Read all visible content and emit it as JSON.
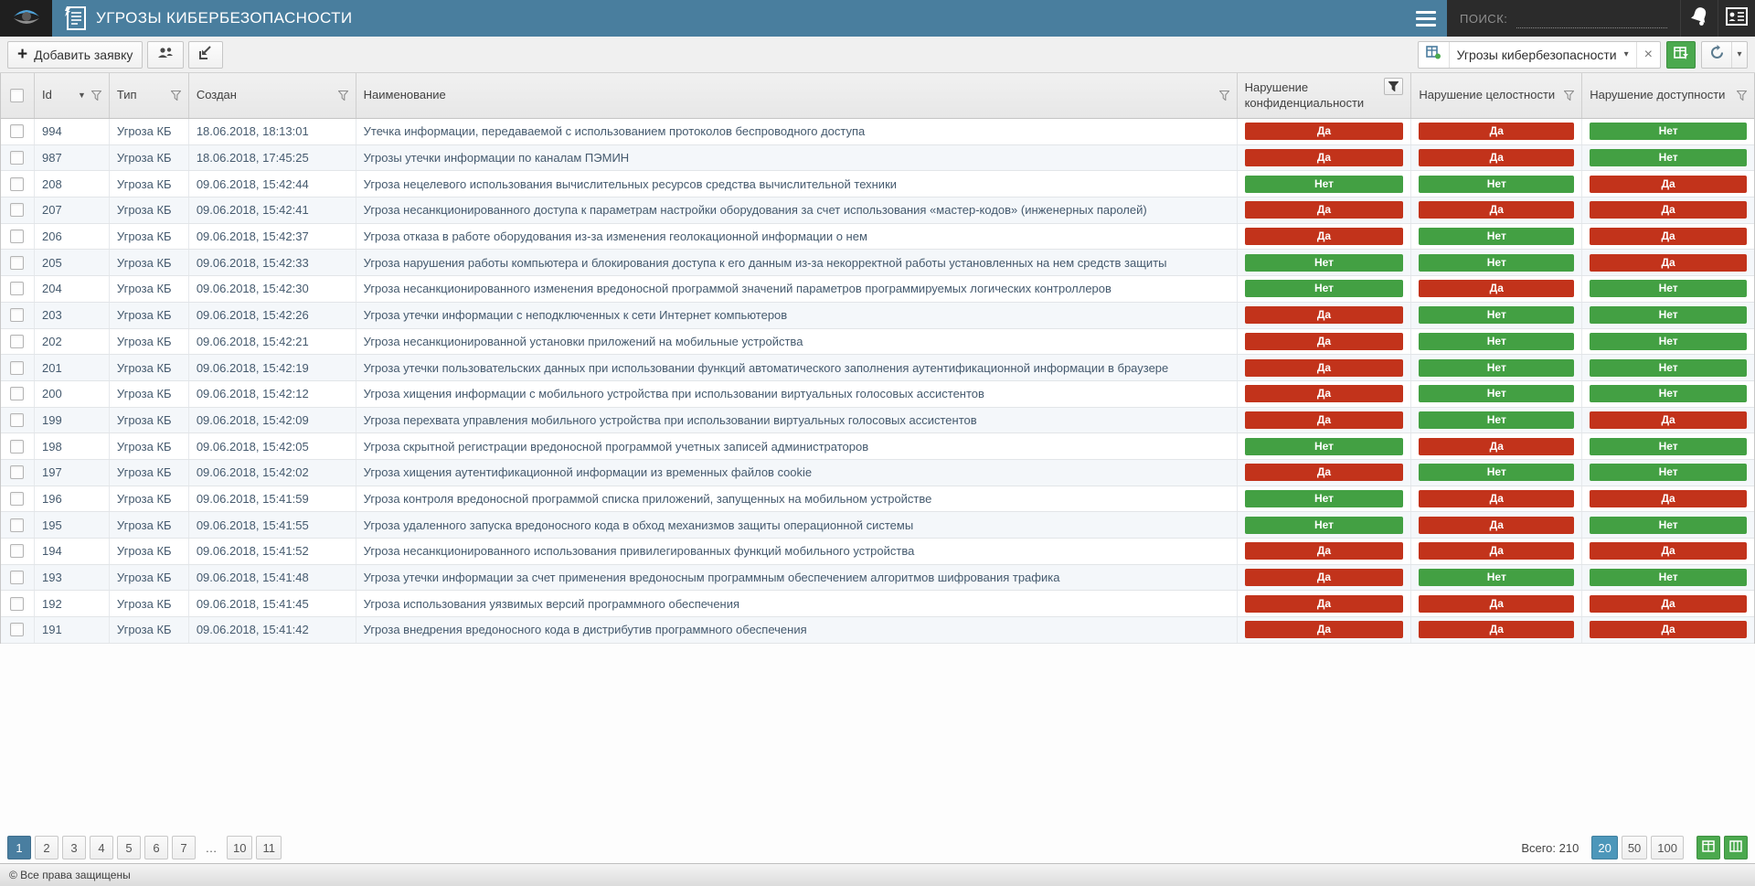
{
  "titlebar": {
    "title": "УГРОЗЫ КИБЕРБЕЗОПАСНОСТИ",
    "search_label": "ПОИСК:"
  },
  "icons": {
    "plus": "+",
    "caret": "▾",
    "close": "×",
    "sort_desc": "▼"
  },
  "colors": {
    "titlebar": "#497E9E",
    "badge_yes": "#C2331B",
    "badge_no": "#43A043",
    "green_button": "#4BA94E",
    "active_page": "#497EA0",
    "active_size": "#4D97BA"
  },
  "toolbar": {
    "add_label": "Добавить заявку",
    "view_name": "Угрозы кибербезопасности"
  },
  "table": {
    "badge_yes_text": "Да",
    "badge_no_text": "Нет",
    "columns": [
      {
        "key": "id",
        "label": "Id"
      },
      {
        "key": "type",
        "label": "Тип"
      },
      {
        "key": "created",
        "label": "Создан"
      },
      {
        "key": "name",
        "label": "Наименование"
      },
      {
        "key": "conf",
        "label": "Нарушение конфиденциальности"
      },
      {
        "key": "integ",
        "label": "Нарушение целостности"
      },
      {
        "key": "avail",
        "label": "Нарушение доступности"
      }
    ],
    "rows": [
      {
        "id": "994",
        "type": "Угроза КБ",
        "created": "18.06.2018, 18:13:01",
        "name": "Утечка информации, передаваемой с использованием протоколов беспроводного доступа",
        "conf": "Да",
        "integ": "Да",
        "avail": "Нет"
      },
      {
        "id": "987",
        "type": "Угроза КБ",
        "created": "18.06.2018, 17:45:25",
        "name": "Угрозы утечки информации по каналам ПЭМИН",
        "conf": "Да",
        "integ": "Да",
        "avail": "Нет"
      },
      {
        "id": "208",
        "type": "Угроза КБ",
        "created": "09.06.2018, 15:42:44",
        "name": "Угроза нецелевого использования вычислительных ресурсов средства вычислительной техники",
        "conf": "Нет",
        "integ": "Нет",
        "avail": "Да"
      },
      {
        "id": "207",
        "type": "Угроза КБ",
        "created": "09.06.2018, 15:42:41",
        "name": "Угроза несанкционированного доступа к параметрам настройки оборудования за счет использования «мастер-кодов» (инженерных паролей)",
        "conf": "Да",
        "integ": "Да",
        "avail": "Да"
      },
      {
        "id": "206",
        "type": "Угроза КБ",
        "created": "09.06.2018, 15:42:37",
        "name": "Угроза отказа в работе оборудования из-за изменения геолокационной информации о нем",
        "conf": "Да",
        "integ": "Нет",
        "avail": "Да"
      },
      {
        "id": "205",
        "type": "Угроза КБ",
        "created": "09.06.2018, 15:42:33",
        "name": "Угроза нарушения работы компьютера и блокирования доступа к его данным из-за некорректной работы установленных на нем средств защиты",
        "conf": "Нет",
        "integ": "Нет",
        "avail": "Да"
      },
      {
        "id": "204",
        "type": "Угроза КБ",
        "created": "09.06.2018, 15:42:30",
        "name": "Угроза несанкционированного изменения вредоносной программой значений параметров программируемых логических контроллеров",
        "conf": "Нет",
        "integ": "Да",
        "avail": "Нет"
      },
      {
        "id": "203",
        "type": "Угроза КБ",
        "created": "09.06.2018, 15:42:26",
        "name": "Угроза утечки информации с неподключенных к сети Интернет компьютеров",
        "conf": "Да",
        "integ": "Нет",
        "avail": "Нет"
      },
      {
        "id": "202",
        "type": "Угроза КБ",
        "created": "09.06.2018, 15:42:21",
        "name": "Угроза несанкционированной установки приложений на мобильные устройства",
        "conf": "Да",
        "integ": "Нет",
        "avail": "Нет"
      },
      {
        "id": "201",
        "type": "Угроза КБ",
        "created": "09.06.2018, 15:42:19",
        "name": "Угроза утечки пользовательских данных при использовании функций автоматического заполнения аутентификационной информации в браузере",
        "conf": "Да",
        "integ": "Нет",
        "avail": "Нет"
      },
      {
        "id": "200",
        "type": "Угроза КБ",
        "created": "09.06.2018, 15:42:12",
        "name": "Угроза хищения информации с мобильного устройства при использовании виртуальных голосовых ассистентов",
        "conf": "Да",
        "integ": "Нет",
        "avail": "Нет"
      },
      {
        "id": "199",
        "type": "Угроза КБ",
        "created": "09.06.2018, 15:42:09",
        "name": "Угроза перехвата управления мобильного устройства при использовании виртуальных голосовых ассистентов",
        "conf": "Да",
        "integ": "Нет",
        "avail": "Да"
      },
      {
        "id": "198",
        "type": "Угроза КБ",
        "created": "09.06.2018, 15:42:05",
        "name": "Угроза скрытной регистрации вредоносной программой учетных записей администраторов",
        "conf": "Нет",
        "integ": "Да",
        "avail": "Нет"
      },
      {
        "id": "197",
        "type": "Угроза КБ",
        "created": "09.06.2018, 15:42:02",
        "name": "Угроза хищения аутентификационной информации из временных файлов cookie",
        "conf": "Да",
        "integ": "Нет",
        "avail": "Нет"
      },
      {
        "id": "196",
        "type": "Угроза КБ",
        "created": "09.06.2018, 15:41:59",
        "name": "Угроза контроля вредоносной программой списка приложений, запущенных на мобильном устройстве",
        "conf": "Нет",
        "integ": "Да",
        "avail": "Да"
      },
      {
        "id": "195",
        "type": "Угроза КБ",
        "created": "09.06.2018, 15:41:55",
        "name": "Угроза удаленного запуска вредоносного кода в обход механизмов защиты операционной системы",
        "conf": "Нет",
        "integ": "Да",
        "avail": "Нет"
      },
      {
        "id": "194",
        "type": "Угроза КБ",
        "created": "09.06.2018, 15:41:52",
        "name": "Угроза несанкционированного использования привилегированных функций мобильного устройства",
        "conf": "Да",
        "integ": "Да",
        "avail": "Да"
      },
      {
        "id": "193",
        "type": "Угроза КБ",
        "created": "09.06.2018, 15:41:48",
        "name": "Угроза утечки информации за счет применения вредоносным программным обеспечением алгоритмов шифрования трафика",
        "conf": "Да",
        "integ": "Нет",
        "avail": "Нет"
      },
      {
        "id": "192",
        "type": "Угроза КБ",
        "created": "09.06.2018, 15:41:45",
        "name": "Угроза использования уязвимых версий программного обеспечения",
        "conf": "Да",
        "integ": "Да",
        "avail": "Да"
      },
      {
        "id": "191",
        "type": "Угроза КБ",
        "created": "09.06.2018, 15:41:42",
        "name": "Угроза внедрения вредоносного кода в дистрибутив программного обеспечения",
        "conf": "Да",
        "integ": "Да",
        "avail": "Да"
      }
    ]
  },
  "pagination": {
    "pages": [
      "1",
      "2",
      "3",
      "4",
      "5",
      "6",
      "7",
      "…",
      "10",
      "11"
    ],
    "active_page": "1",
    "ellipsis": "…",
    "total_label": "Всего:",
    "total_value": "210",
    "sizes": [
      "20",
      "50",
      "100"
    ],
    "active_size": "20"
  },
  "footer": {
    "copyright": "© Все права защищены"
  }
}
